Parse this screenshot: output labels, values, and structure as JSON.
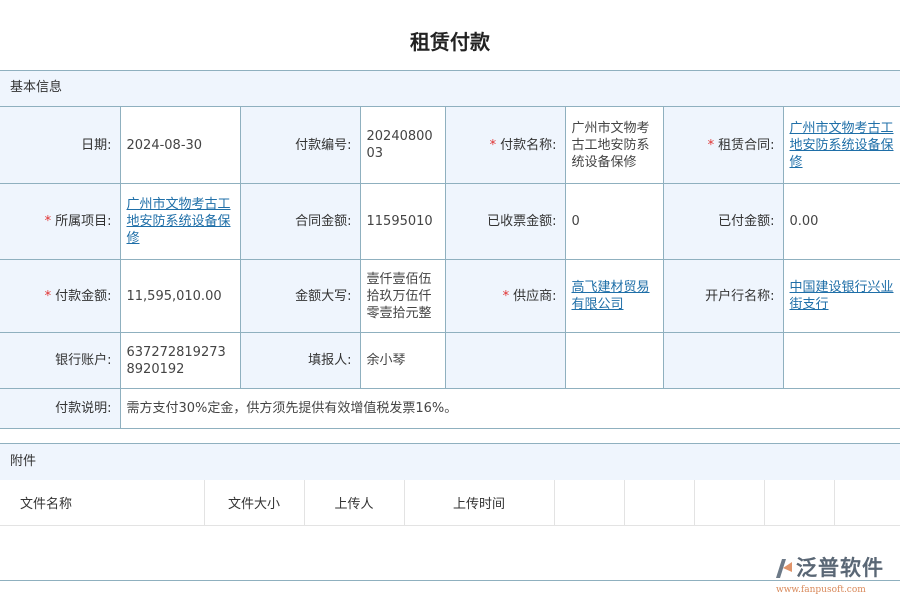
{
  "title": "租赁付款",
  "basic": {
    "section": "基本信息",
    "date_label": "日期:",
    "date": "2024-08-30",
    "no_label": "付款编号:",
    "no": "2024080003",
    "name_label": "付款名称:",
    "name": "广州市文物考古工地安防系统设备保修",
    "contract_label": "租赁合同:",
    "contract": "广州市文物考古工地安防系统设备保修",
    "project_label": "所属项目:",
    "project": "广州市文物考古工地安防系统设备保修",
    "contract_amount_label": "合同金额:",
    "contract_amount": "11595010",
    "invoiced_label": "已收票金额:",
    "invoiced": "0",
    "paid_label": "已付金额:",
    "paid": "0.00",
    "amount_label": "付款金额:",
    "amount": "11,595,010.00",
    "amount_cn_label": "金额大写:",
    "amount_cn": "壹仟壹佰伍拾玖万伍仟零壹拾元整",
    "supplier_label": "供应商:",
    "supplier": "高飞建材贸易有限公司",
    "bank_label": "开户行名称:",
    "bank": "中国建设银行兴业街支行",
    "account_label": "银行账户:",
    "account": "6372728192738920192",
    "reporter_label": "填报人:",
    "reporter": "余小琴",
    "remark_label": "付款说明:",
    "remark": "需方支付30%定金，供方须先提供有效增值税发票16%。",
    "required_mark": "*"
  },
  "attachments": {
    "section": "附件",
    "columns": [
      "文件名称",
      "文件大小",
      "上传人",
      "上传时间"
    ]
  },
  "logo": {
    "text": "泛普软件",
    "url": "www.fanpusoft.com"
  }
}
